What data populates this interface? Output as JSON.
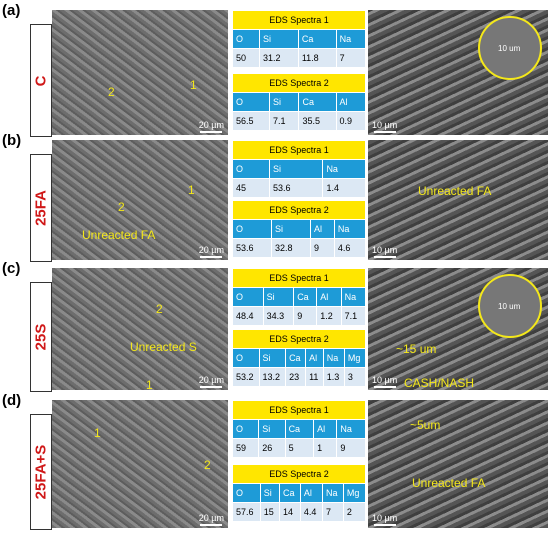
{
  "panels": [
    {
      "label": "(a)",
      "sample": "C",
      "left_image": {
        "annotations": [
          "2",
          "1"
        ],
        "scale_bar": "20 µm"
      },
      "tables": [
        {
          "title": "EDS Spectra 1",
          "headers": [
            "O",
            "Si",
            "Ca",
            "Na"
          ],
          "values": [
            "50",
            "31.2",
            "11.8",
            "7"
          ]
        },
        {
          "title": "EDS Spectra 2",
          "headers": [
            "O",
            "Si",
            "Ca",
            "Al"
          ],
          "values": [
            "56.5",
            "7.1",
            "35.5",
            "0.9"
          ]
        }
      ],
      "right_image": {
        "annotations": [],
        "inset_label": "10 um",
        "scale_bar": "10 µm"
      }
    },
    {
      "label": "(b)",
      "sample": "25FA",
      "left_image": {
        "annotations": [
          "1",
          "2",
          "Unreacted FA"
        ],
        "scale_bar": "20 µm"
      },
      "tables": [
        {
          "title": "EDS Spectra 1",
          "headers": [
            "O",
            "Si",
            "Na"
          ],
          "values": [
            "45",
            "53.6",
            "1.4"
          ]
        },
        {
          "title": "EDS Spectra 2",
          "headers": [
            "O",
            "Si",
            "Al",
            "Na"
          ],
          "values": [
            "53.6",
            "32.8",
            "9",
            "4.6"
          ]
        }
      ],
      "right_image": {
        "annotations": [
          "Unreacted FA"
        ],
        "scale_bar": "10 µm"
      }
    },
    {
      "label": "(c)",
      "sample": "25S",
      "left_image": {
        "annotations": [
          "2",
          "Unreacted S",
          "1"
        ],
        "scale_bar": "20 µm"
      },
      "tables": [
        {
          "title": "EDS Spectra 1",
          "headers": [
            "O",
            "Si",
            "Ca",
            "Al",
            "Na"
          ],
          "values": [
            "48.4",
            "34.3",
            "9",
            "1.2",
            "7.1"
          ]
        },
        {
          "title": "EDS Spectra 2",
          "headers": [
            "O",
            "Si",
            "Ca",
            "Al",
            "Na",
            "Mg"
          ],
          "values": [
            "53.2",
            "13.2",
            "23",
            "11",
            "1.3",
            "3"
          ]
        }
      ],
      "right_image": {
        "annotations": [
          "~15 um",
          "CASH/NASH"
        ],
        "inset_label": "10 um",
        "scale_bar": "10 µm"
      }
    },
    {
      "label": "(d)",
      "sample": "25FA+S",
      "left_image": {
        "annotations": [
          "1",
          "2"
        ],
        "scale_bar": "20 µm"
      },
      "tables": [
        {
          "title": "EDS Spectra 1",
          "headers": [
            "O",
            "Si",
            "Ca",
            "Al",
            "Na"
          ],
          "values": [
            "59",
            "26",
            "5",
            "1",
            "9"
          ]
        },
        {
          "title": "EDS Spectra 2",
          "headers": [
            "O",
            "Si",
            "Ca",
            "Al",
            "Na",
            "Mg"
          ],
          "values": [
            "57.6",
            "15",
            "14",
            "4.4",
            "7",
            "2"
          ]
        }
      ],
      "right_image": {
        "annotations": [
          "~5um",
          "Unreacted FA"
        ],
        "scale_bar": "10 µm"
      }
    }
  ]
}
